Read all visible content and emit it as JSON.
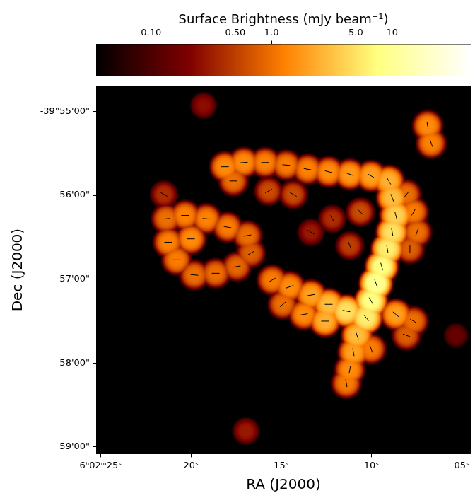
{
  "chart_data": {
    "type": "image",
    "x_label": "RA (J2000)",
    "y_label": "Dec (J2000)",
    "xlim": [
      21745.25,
      21724.5
    ],
    "ylim": [
      -2399.08,
      -2394.7
    ],
    "xticks": [
      {
        "value": 21745,
        "label": "6ʰ02ᵐ25ˢ"
      },
      {
        "value": 21740,
        "label": "20ˢ"
      },
      {
        "value": 21735,
        "label": "15ˢ"
      },
      {
        "value": 21730,
        "label": "10ˢ"
      },
      {
        "value": 21725,
        "label": "05ˢ"
      }
    ],
    "yticks": [
      {
        "value": -2395,
        "label": "-39°55'00\""
      },
      {
        "value": -2396,
        "label": "56'00\""
      },
      {
        "value": -2397,
        "label": "57'00\""
      },
      {
        "value": -2398,
        "label": "58'00\""
      },
      {
        "value": -2399,
        "label": "59'00\""
      }
    ],
    "colorbar": {
      "title": "Surface Brightness (mJy beam⁻¹)",
      "range": [
        0.035,
        45
      ],
      "log": true,
      "ticks": [
        {
          "value": 0.1,
          "label": "0.10"
        },
        {
          "value": 0.5,
          "label": "0.50"
        },
        {
          "value": 1,
          "label": "1.0"
        },
        {
          "value": 5,
          "label": "5.0"
        },
        10
      ]
    },
    "components": [
      {
        "ra": 21738.12,
        "dec": -2395.66,
        "peak": 1.5,
        "pa": 90
      },
      {
        "ra": 21737.07,
        "dec": -2395.61,
        "peak": 1.5,
        "pa": 95
      },
      {
        "ra": 21735.89,
        "dec": -2395.61,
        "peak": 1.3,
        "pa": 90
      },
      {
        "ra": 21734.72,
        "dec": -2395.64,
        "peak": 1.2,
        "pa": 85
      },
      {
        "ra": 21733.54,
        "dec": -2395.69,
        "peak": 1.3,
        "pa": 80
      },
      {
        "ra": 21732.37,
        "dec": -2395.72,
        "peak": 1.5,
        "pa": 75
      },
      {
        "ra": 21731.2,
        "dec": -2395.75,
        "peak": 1.8,
        "pa": 70
      },
      {
        "ra": 21730.02,
        "dec": -2395.77,
        "peak": 2.0,
        "pa": 60
      },
      {
        "ra": 21729.04,
        "dec": -2395.83,
        "peak": 2.5,
        "pa": 30
      },
      {
        "ra": 21737.65,
        "dec": -2395.83,
        "peak": 1.0,
        "pa": 90
      },
      {
        "ra": 21735.7,
        "dec": -2395.95,
        "peak": 0.6,
        "pa": 120
      },
      {
        "ra": 21734.33,
        "dec": -2395.99,
        "peak": 0.6,
        "pa": 60
      },
      {
        "ra": 21728.85,
        "dec": -2396.03,
        "peak": 3.0,
        "pa": 20
      },
      {
        "ra": 21728.65,
        "dec": -2396.24,
        "peak": 4.0,
        "pa": 15
      },
      {
        "ra": 21728.85,
        "dec": -2396.44,
        "peak": 5.0,
        "pa": 10
      },
      {
        "ra": 21729.12,
        "dec": -2396.64,
        "peak": 6.0,
        "pa": 10
      },
      {
        "ra": 21729.43,
        "dec": -2396.85,
        "peak": 8.0,
        "pa": 15
      },
      {
        "ra": 21729.75,
        "dec": -2397.05,
        "peak": 10,
        "pa": 20
      },
      {
        "ra": 21730.02,
        "dec": -2397.26,
        "peak": 8,
        "pa": 30
      },
      {
        "ra": 21730.29,
        "dec": -2397.46,
        "peak": 6,
        "pa": 40
      },
      {
        "ra": 21727.67,
        "dec": -2396.2,
        "peak": 1.2,
        "pa": 150
      },
      {
        "ra": 21727.48,
        "dec": -2396.44,
        "peak": 1.0,
        "pa": 160
      },
      {
        "ra": 21728.06,
        "dec": -2395.99,
        "peak": 1.0,
        "pa": 140
      },
      {
        "ra": 21727.87,
        "dec": -2396.64,
        "peak": 0.8,
        "pa": 0
      },
      {
        "ra": 21732.17,
        "dec": -2396.28,
        "peak": 0.4,
        "pa": 30
      },
      {
        "ra": 21733.35,
        "dec": -2396.44,
        "peak": 0.3,
        "pa": 60
      },
      {
        "ra": 21731.2,
        "dec": -2396.6,
        "peak": 0.5,
        "pa": 20
      },
      {
        "ra": 21730.61,
        "dec": -2396.2,
        "peak": 0.6,
        "pa": 45
      },
      {
        "ra": 21735.5,
        "dec": -2397.01,
        "peak": 1.2,
        "pa": 120
      },
      {
        "ra": 21734.52,
        "dec": -2397.09,
        "peak": 1.5,
        "pa": 110
      },
      {
        "ra": 21733.35,
        "dec": -2397.19,
        "peak": 2.0,
        "pa": 100
      },
      {
        "ra": 21732.37,
        "dec": -2397.3,
        "peak": 3.0,
        "pa": 90
      },
      {
        "ra": 21731.39,
        "dec": -2397.38,
        "peak": 5.0,
        "pa": 80
      },
      {
        "ra": 21734.91,
        "dec": -2397.3,
        "peak": 1.0,
        "pa": 130
      },
      {
        "ra": 21733.74,
        "dec": -2397.42,
        "peak": 1.5,
        "pa": 100
      },
      {
        "ra": 21732.57,
        "dec": -2397.5,
        "peak": 2.5,
        "pa": 90
      },
      {
        "ra": 21730.8,
        "dec": -2397.67,
        "peak": 3.0,
        "pa": 20
      },
      {
        "ra": 21731.0,
        "dec": -2397.87,
        "peak": 2.0,
        "pa": 10
      },
      {
        "ra": 21731.2,
        "dec": -2398.08,
        "peak": 1.5,
        "pa": 170
      },
      {
        "ra": 21731.39,
        "dec": -2398.24,
        "peak": 1.2,
        "pa": 10
      },
      {
        "ra": 21730.02,
        "dec": -2397.83,
        "peak": 1.2,
        "pa": 20
      },
      {
        "ra": 21728.65,
        "dec": -2397.42,
        "peak": 2.0,
        "pa": 50
      },
      {
        "ra": 21727.67,
        "dec": -2397.5,
        "peak": 1.0,
        "pa": 60
      },
      {
        "ra": 21728.06,
        "dec": -2397.67,
        "peak": 0.8,
        "pa": 70
      },
      {
        "ra": 21741.37,
        "dec": -2396.28,
        "peak": 1.0,
        "pa": 95
      },
      {
        "ra": 21740.32,
        "dec": -2396.24,
        "peak": 1.3,
        "pa": 90
      },
      {
        "ra": 21739.14,
        "dec": -2396.28,
        "peak": 1.3,
        "pa": 85
      },
      {
        "ra": 21737.97,
        "dec": -2396.38,
        "peak": 1.2,
        "pa": 80
      },
      {
        "ra": 21736.87,
        "dec": -2396.48,
        "peak": 1.0,
        "pa": 100
      },
      {
        "ra": 21736.68,
        "dec": -2396.69,
        "peak": 0.8,
        "pa": 120
      },
      {
        "ra": 21737.46,
        "dec": -2396.85,
        "peak": 0.9,
        "pa": 100
      },
      {
        "ra": 21738.63,
        "dec": -2396.93,
        "peak": 1.0,
        "pa": 90
      },
      {
        "ra": 21739.81,
        "dec": -2396.95,
        "peak": 1.0,
        "pa": 85
      },
      {
        "ra": 21740.79,
        "dec": -2396.77,
        "peak": 1.2,
        "pa": 90
      },
      {
        "ra": 21741.26,
        "dec": -2396.56,
        "peak": 1.3,
        "pa": 90
      },
      {
        "ra": 21740.0,
        "dec": -2396.52,
        "peak": 1.5,
        "pa": 90
      },
      {
        "ra": 21741.49,
        "dec": -2395.99,
        "peak": 0.4,
        "pa": 60
      },
      {
        "ra": 21726.89,
        "dec": -2395.17,
        "peak": 1.5,
        "pa": 10
      },
      {
        "ra": 21726.69,
        "dec": -2395.38,
        "peak": 1.3,
        "pa": 20
      },
      {
        "ra": 21739.3,
        "dec": -2394.93,
        "peak": 0.25,
        "pa": null
      },
      {
        "ra": 21736.95,
        "dec": -2398.81,
        "peak": 0.3,
        "pa": null
      },
      {
        "ra": 21725.32,
        "dec": -2397.67,
        "peak": 0.15,
        "pa": null
      }
    ]
  }
}
